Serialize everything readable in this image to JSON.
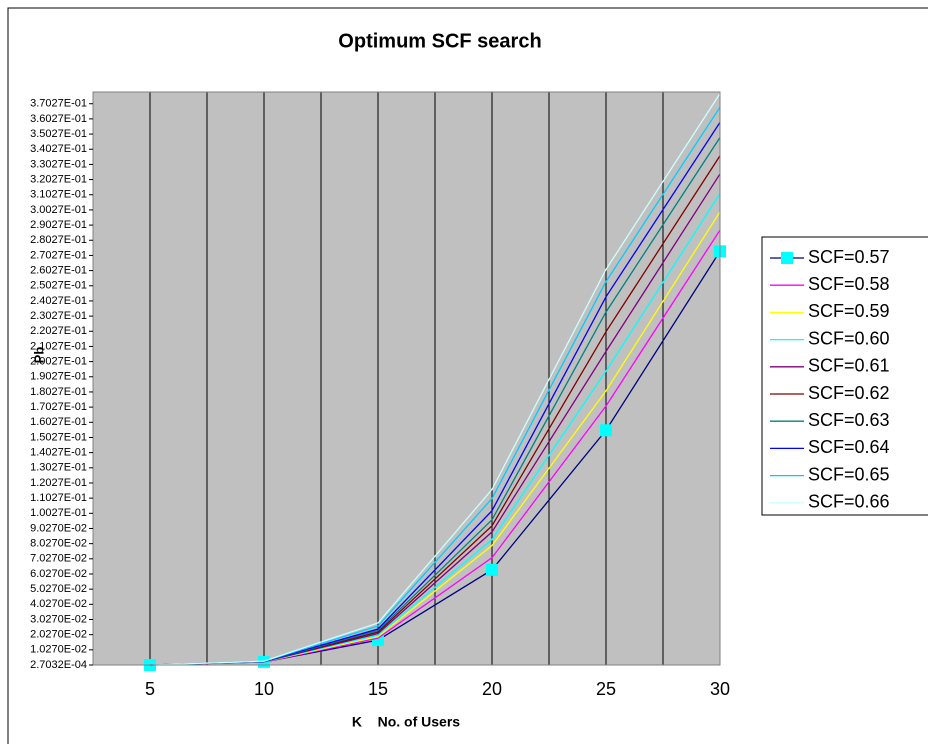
{
  "chart_data": {
    "type": "line",
    "title": "Optimum SCF search",
    "x_label": "K    No. of Users",
    "y_label": "Pb",
    "x": [
      5,
      10,
      15,
      20,
      25,
      30
    ],
    "xlim": [
      2.5,
      30
    ],
    "xticks": [
      5,
      10,
      15,
      20,
      25,
      30
    ],
    "ylim": [
      0.00027032,
      0.378
    ],
    "yticks": [
      {
        "value": 0.00027032,
        "label": "2.7032E-04"
      },
      {
        "value": 0.01027,
        "label": "1.0270E-02"
      },
      {
        "value": 0.02027,
        "label": "2.0270E-02"
      },
      {
        "value": 0.03027,
        "label": "3.0270E-02"
      },
      {
        "value": 0.04027,
        "label": "4.0270E-02"
      },
      {
        "value": 0.05027,
        "label": "5.0270E-02"
      },
      {
        "value": 0.06027,
        "label": "6.0270E-02"
      },
      {
        "value": 0.07027,
        "label": "7.0270E-02"
      },
      {
        "value": 0.08027,
        "label": "8.0270E-02"
      },
      {
        "value": 0.09027,
        "label": "9.0270E-02"
      },
      {
        "value": 0.10027,
        "label": "1.0027E-01"
      },
      {
        "value": 0.11027,
        "label": "1.1027E-01"
      },
      {
        "value": 0.12027,
        "label": "1.2027E-01"
      },
      {
        "value": 0.13027,
        "label": "1.3027E-01"
      },
      {
        "value": 0.14027,
        "label": "1.4027E-01"
      },
      {
        "value": 0.15027,
        "label": "1.5027E-01"
      },
      {
        "value": 0.16027,
        "label": "1.6027E-01"
      },
      {
        "value": 0.17027,
        "label": "1.7027E-01"
      },
      {
        "value": 0.18027,
        "label": "1.8027E-01"
      },
      {
        "value": 0.19027,
        "label": "1.9027E-01"
      },
      {
        "value": 0.20027,
        "label": "2.0027E-01"
      },
      {
        "value": 0.21027,
        "label": "2.1027E-01"
      },
      {
        "value": 0.22027,
        "label": "2.2027E-01"
      },
      {
        "value": 0.23027,
        "label": "2.3027E-01"
      },
      {
        "value": 0.24027,
        "label": "2.4027E-01"
      },
      {
        "value": 0.25027,
        "label": "2.5027E-01"
      },
      {
        "value": 0.26027,
        "label": "2.6027E-01"
      },
      {
        "value": 0.27027,
        "label": "2.7027E-01"
      },
      {
        "value": 0.28027,
        "label": "2.8027E-01"
      },
      {
        "value": 0.29027,
        "label": "2.9027E-01"
      },
      {
        "value": 0.30027,
        "label": "3.0027E-01"
      },
      {
        "value": 0.31027,
        "label": "3.1027E-01"
      },
      {
        "value": 0.32027,
        "label": "3.2027E-01"
      },
      {
        "value": 0.33027,
        "label": "3.3027E-01"
      },
      {
        "value": 0.34027,
        "label": "3.4027E-01"
      },
      {
        "value": 0.35027,
        "label": "3.5027E-01"
      },
      {
        "value": 0.36027,
        "label": "3.6027E-01"
      },
      {
        "value": 0.37027,
        "label": "3.7027E-01"
      }
    ],
    "grid": true,
    "legend": "right",
    "series": [
      {
        "name": "SCF=0.57",
        "color": "#000080",
        "marker_color": "#00ffff",
        "values": [
          0.00027,
          0.0023,
          0.0167,
          0.063,
          0.155,
          0.273
        ]
      },
      {
        "name": "SCF=0.58",
        "color": "#ff00ff",
        "values": [
          0.00027,
          0.0023,
          0.018,
          0.071,
          0.171,
          0.287
        ]
      },
      {
        "name": "SCF=0.59",
        "color": "#ffff00",
        "values": [
          0.00027,
          0.0024,
          0.019,
          0.079,
          0.181,
          0.299
        ]
      },
      {
        "name": "SCF=0.60",
        "color": "#00ffff",
        "values": [
          0.00027,
          0.0024,
          0.02,
          0.083,
          0.194,
          0.311
        ]
      },
      {
        "name": "SCF=0.61",
        "color": "#800080",
        "values": [
          0.00027,
          0.0025,
          0.021,
          0.088,
          0.207,
          0.324
        ]
      },
      {
        "name": "SCF=0.62",
        "color": "#800000",
        "values": [
          0.00027,
          0.0025,
          0.022,
          0.092,
          0.22,
          0.336
        ]
      },
      {
        "name": "SCF=0.63",
        "color": "#008080",
        "values": [
          0.00027,
          0.0026,
          0.023,
          0.096,
          0.233,
          0.348
        ]
      },
      {
        "name": "SCF=0.64",
        "color": "#0000ff",
        "values": [
          0.00027,
          0.0026,
          0.024,
          0.102,
          0.243,
          0.358
        ]
      },
      {
        "name": "SCF=0.65",
        "color": "#00ccff",
        "values": [
          0.00027,
          0.0027,
          0.026,
          0.11,
          0.253,
          0.368
        ]
      },
      {
        "name": "SCF=0.66",
        "color": "#ccffff",
        "values": [
          0.00027,
          0.0028,
          0.028,
          0.116,
          0.261,
          0.377
        ]
      }
    ]
  }
}
